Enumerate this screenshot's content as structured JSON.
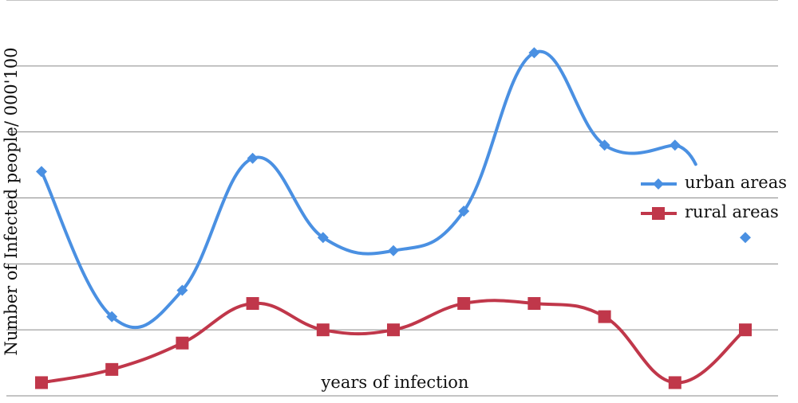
{
  "chart_data": {
    "type": "line",
    "xlabel": "years of infection",
    "ylabel": "Number of Infected people/ 000'100",
    "categories": [
      "",
      "",
      "",
      "",
      "",
      "",
      "",
      "",
      "",
      "",
      ""
    ],
    "ylim": [
      0,
      6
    ],
    "grid": true,
    "legend_position": "right",
    "series": [
      {
        "name": "urban areas",
        "color": "#4a90e2",
        "marker": "diamond",
        "values": [
          3.4,
          1.2,
          1.6,
          3.6,
          2.4,
          2.2,
          2.8,
          5.2,
          3.8,
          3.8,
          2.4
        ]
      },
      {
        "name": "rural areas",
        "color": "#c0374a",
        "marker": "square",
        "values": [
          0.2,
          0.4,
          0.8,
          1.4,
          1.0,
          1.0,
          1.4,
          1.4,
          1.2,
          0.2,
          1.0
        ]
      }
    ]
  }
}
